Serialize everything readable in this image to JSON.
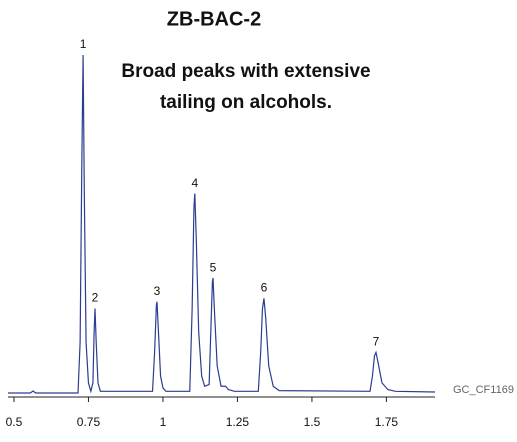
{
  "chart_data": {
    "type": "line",
    "title": "ZB-BAC-2",
    "subtitle": [
      "Broad peaks with extensive",
      "tailing on alcohols."
    ],
    "footnote": "GC_CF1169",
    "color": "#2b3d8f",
    "x": [
      0.48,
      0.555,
      0.564,
      0.573,
      0.715,
      0.722,
      0.728,
      0.732,
      0.736,
      0.742,
      0.75,
      0.758,
      0.765,
      0.769,
      0.772,
      0.776,
      0.782,
      0.79,
      0.965,
      0.972,
      0.978,
      0.98,
      0.985,
      0.992,
      1.0,
      1.01,
      1.09,
      1.098,
      1.104,
      1.107,
      1.112,
      1.12,
      1.13,
      1.14,
      1.155,
      1.162,
      1.166,
      1.168,
      1.173,
      1.182,
      1.195,
      1.21,
      1.22,
      1.24,
      1.32,
      1.328,
      1.334,
      1.339,
      1.345,
      1.355,
      1.37,
      1.39,
      1.695,
      1.703,
      1.71,
      1.715,
      1.722,
      1.735,
      1.755,
      1.78,
      1.913
    ],
    "values": [
      0,
      0,
      0.6,
      0,
      0,
      15,
      70,
      100,
      60,
      15,
      3,
      0.5,
      3,
      18,
      25,
      15,
      3,
      0.5,
      0.5,
      12,
      26,
      27,
      18,
      5,
      1.5,
      0.5,
      0.5,
      25,
      55,
      59,
      45,
      18,
      5,
      2,
      2.5,
      22,
      33,
      34,
      24,
      8,
      2,
      2,
      1,
      0.5,
      0.5,
      12,
      25,
      28,
      22,
      8,
      2,
      0.7,
      0.5,
      5,
      11,
      12,
      9,
      3,
      1,
      0.5,
      0.3
    ],
    "annotations": [
      {
        "text": "1",
        "x": 0.732,
        "y": 100
      },
      {
        "text": "2",
        "x": 0.772,
        "y": 25
      },
      {
        "text": "3",
        "x": 0.98,
        "y": 27
      },
      {
        "text": "4",
        "x": 1.107,
        "y": 59
      },
      {
        "text": "5",
        "x": 1.168,
        "y": 34
      },
      {
        "text": "6",
        "x": 1.339,
        "y": 28
      },
      {
        "text": "7",
        "x": 1.715,
        "y": 12
      }
    ],
    "xlim": [
      0.48,
      1.913
    ],
    "xticks": [
      0.5,
      0.75,
      1,
      1.25,
      1.5,
      1.75
    ],
    "ylim": [
      0,
      100
    ]
  }
}
